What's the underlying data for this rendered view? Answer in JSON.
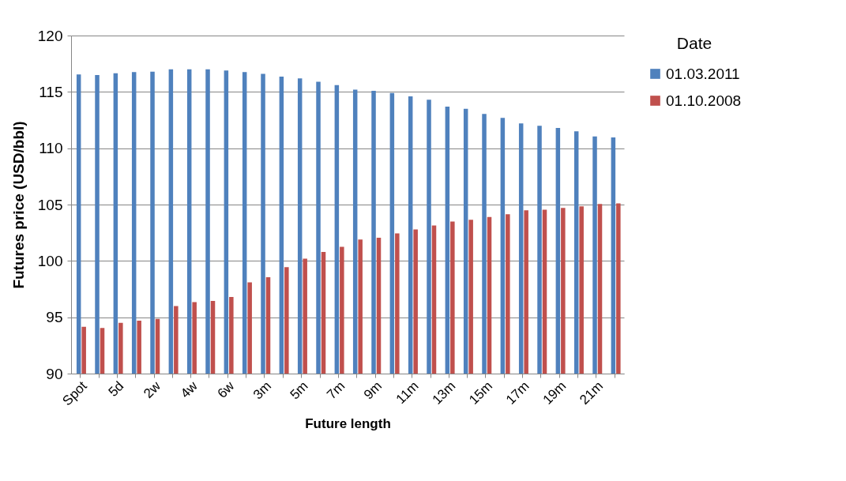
{
  "chart_data": {
    "type": "bar",
    "xlabel": "Future length",
    "ylabel": "Futures price (USD/bbl)",
    "legend_title": "Date",
    "categories": [
      "Spot",
      null,
      "5d",
      null,
      "2w",
      null,
      "4w",
      null,
      "6w",
      null,
      "3m",
      null,
      "5m",
      null,
      "7m",
      null,
      "9m",
      null,
      "11m",
      null,
      "13m",
      null,
      "15m",
      null,
      "17m",
      null,
      "19m",
      null,
      "21m",
      null
    ],
    "series": [
      {
        "name": "01.03.2011",
        "color": "#4f81bd",
        "values": [
          116.55,
          116.5,
          116.65,
          116.75,
          116.8,
          117.0,
          117.0,
          117.0,
          116.9,
          116.75,
          116.6,
          116.35,
          116.2,
          115.9,
          115.6,
          115.2,
          115.1,
          114.9,
          114.6,
          114.3,
          113.7,
          113.5,
          113.05,
          112.7,
          112.2,
          112.0,
          111.8,
          111.5,
          111.05,
          110.95
        ]
      },
      {
        "name": "01.10.2008",
        "color": "#c0504d",
        "values": [
          94.15,
          94.05,
          94.5,
          94.7,
          94.85,
          96.0,
          96.35,
          96.45,
          96.8,
          98.1,
          98.55,
          99.45,
          100.2,
          100.8,
          101.25,
          101.9,
          102.05,
          102.45,
          102.8,
          103.15,
          103.5,
          103.65,
          103.9,
          104.15,
          104.5,
          104.55,
          104.7,
          104.85,
          105.05,
          105.1
        ]
      }
    ],
    "ylim": [
      90,
      120
    ],
    "yticks": [
      90,
      95,
      100,
      105,
      110,
      115,
      120
    ],
    "grid": "y",
    "legend": "right"
  }
}
